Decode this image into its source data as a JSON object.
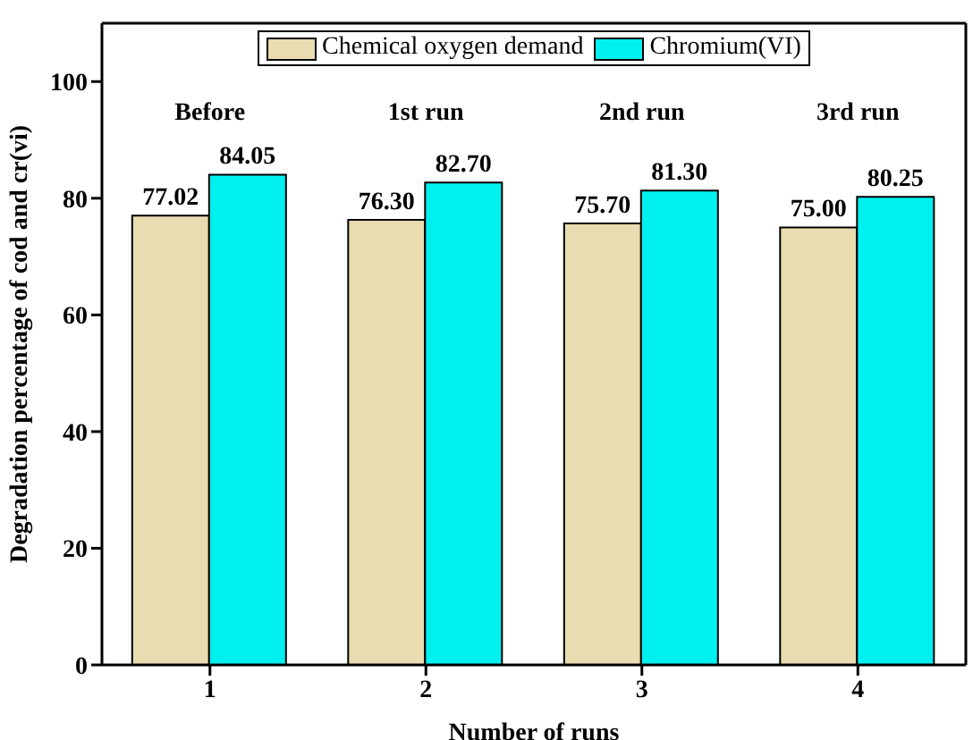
{
  "chart_data": {
    "type": "bar",
    "xlabel": "Number of runs",
    "ylabel": "Degradation percentage of cod and cr(vi)",
    "categories": [
      "1",
      "2",
      "3",
      "4"
    ],
    "series": [
      {
        "name": "Chemical oxygen demand",
        "color": "#e8dcb0",
        "values": [
          77.02,
          76.3,
          75.7,
          75.0
        ],
        "value_labels": [
          "77.02",
          "76.30",
          "75.70",
          "75.00"
        ]
      },
      {
        "name": "Chromium(VI)",
        "color": "#00f0f0",
        "values": [
          84.05,
          82.7,
          81.3,
          80.25
        ],
        "value_labels": [
          "84.05",
          "82.70",
          "81.30",
          "80.25"
        ]
      }
    ],
    "annotations": [
      "Before",
      "1st run",
      "2nd run",
      "3rd run"
    ],
    "ylim": [
      0,
      110
    ],
    "yticks": [
      0,
      20,
      40,
      60,
      80,
      100
    ],
    "grid": false,
    "legend": "top"
  }
}
